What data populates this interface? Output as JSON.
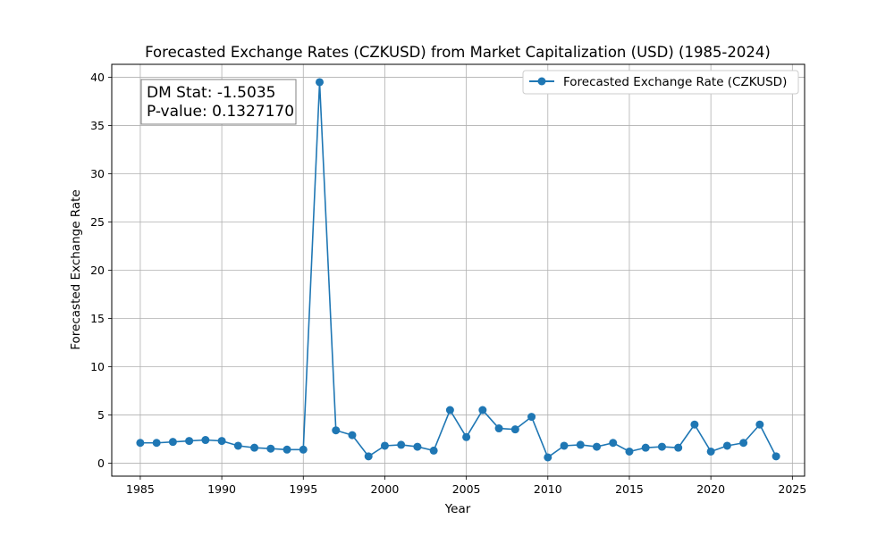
{
  "chart_data": {
    "type": "line",
    "title": "Forecasted Exchange Rates (CZKUSD) from Market Capitalization (USD) (1985-2024)",
    "xlabel": "Year",
    "ylabel": "Forecasted Exchange Rate",
    "xlim": [
      1983.25,
      2025.75
    ],
    "ylim": [
      -1.35,
      41.35
    ],
    "xticks": [
      1985,
      1990,
      1995,
      2000,
      2005,
      2010,
      2015,
      2020,
      2025
    ],
    "yticks": [
      0,
      5,
      10,
      15,
      20,
      25,
      30,
      35,
      40
    ],
    "grid": true,
    "legend_position": "top-right",
    "series": [
      {
        "name": "Forecasted Exchange Rate (CZKUSD)",
        "color": "#1f77b4",
        "marker": "circle",
        "x": [
          1985,
          1986,
          1987,
          1988,
          1989,
          1990,
          1991,
          1992,
          1993,
          1994,
          1995,
          1996,
          1997,
          1998,
          1999,
          2000,
          2001,
          2002,
          2003,
          2004,
          2005,
          2006,
          2007,
          2008,
          2009,
          2010,
          2011,
          2012,
          2013,
          2014,
          2015,
          2016,
          2017,
          2018,
          2019,
          2020,
          2021,
          2022,
          2023,
          2024
        ],
        "y": [
          2.1,
          2.1,
          2.2,
          2.3,
          2.4,
          2.3,
          1.8,
          1.6,
          1.5,
          1.4,
          1.4,
          39.5,
          3.4,
          2.9,
          0.7,
          1.8,
          1.9,
          1.7,
          1.3,
          5.5,
          2.7,
          5.5,
          3.6,
          3.5,
          4.8,
          0.6,
          1.8,
          1.9,
          1.7,
          2.1,
          1.2,
          1.6,
          1.7,
          1.6,
          4.0,
          1.2,
          1.8,
          2.1,
          4.0,
          0.7
        ]
      }
    ],
    "annotations": [
      {
        "text": "DM Stat: -1.5035"
      },
      {
        "text": "P-value: 0.1327170"
      }
    ]
  }
}
